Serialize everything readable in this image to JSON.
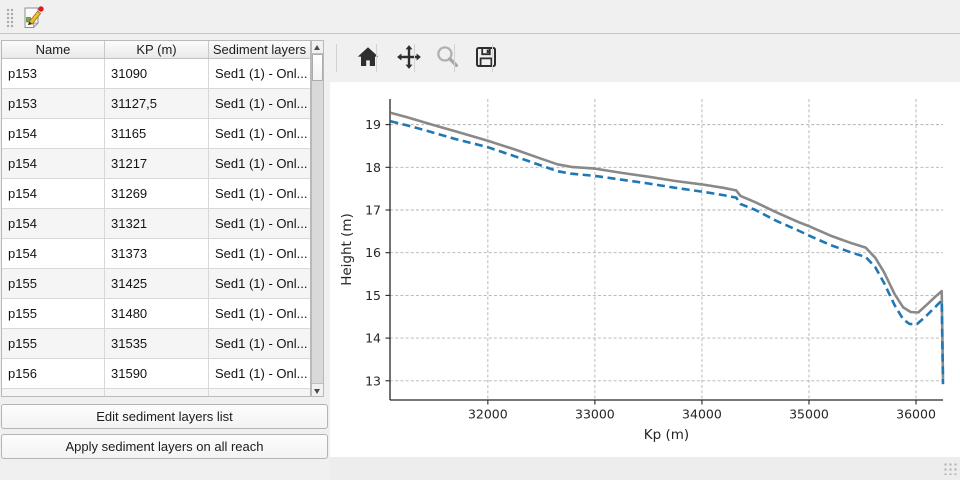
{
  "top_toolbar": {
    "icon": "edit-form-icon"
  },
  "left_panel": {
    "table": {
      "columns": [
        "Name",
        "KP (m)",
        "Sediment layers"
      ],
      "rows": [
        {
          "name": "p153",
          "kp": "31090",
          "sediment": "Sed1 (1) - Onl..."
        },
        {
          "name": "p153",
          "kp": "31127,5",
          "sediment": "Sed1 (1) - Onl..."
        },
        {
          "name": "p154",
          "kp": "31165",
          "sediment": "Sed1 (1) - Onl..."
        },
        {
          "name": "p154",
          "kp": "31217",
          "sediment": "Sed1 (1) - Onl..."
        },
        {
          "name": "p154",
          "kp": "31269",
          "sediment": "Sed1 (1) - Onl..."
        },
        {
          "name": "p154",
          "kp": "31321",
          "sediment": "Sed1 (1) - Onl..."
        },
        {
          "name": "p154",
          "kp": "31373",
          "sediment": "Sed1 (1) - Onl..."
        },
        {
          "name": "p155",
          "kp": "31425",
          "sediment": "Sed1 (1) - Onl..."
        },
        {
          "name": "p155",
          "kp": "31480",
          "sediment": "Sed1 (1) - Onl..."
        },
        {
          "name": "p155",
          "kp": "31535",
          "sediment": "Sed1 (1) - Onl..."
        },
        {
          "name": "p156",
          "kp": "31590",
          "sediment": "Sed1 (1) - Onl..."
        }
      ]
    },
    "buttons": {
      "edit": "Edit sediment layers list",
      "apply": "Apply sediment layers on all reach"
    }
  },
  "plot_toolbar": {
    "icons": [
      {
        "name": "home-icon",
        "enabled": true
      },
      {
        "name": "pan-icon",
        "enabled": true
      },
      {
        "name": "zoom-icon",
        "enabled": false
      },
      {
        "name": "save-icon",
        "enabled": true
      }
    ]
  },
  "chart_data": {
    "type": "line",
    "title": "",
    "xlabel": "Kp (m)",
    "ylabel": "Height (m)",
    "xlim": [
      31086,
      36252
    ],
    "ylim": [
      12.55,
      19.6
    ],
    "xticks": [
      32000,
      33000,
      34000,
      35000,
      36000
    ],
    "yticks": [
      13,
      14,
      15,
      16,
      17,
      18,
      19
    ],
    "grid": true,
    "legend": null,
    "series": [
      {
        "name": "bed-profile-solid",
        "color": "#898989",
        "style": "solid",
        "points": [
          [
            31090,
            19.28
          ],
          [
            31250,
            19.17
          ],
          [
            31450,
            19.02
          ],
          [
            31700,
            18.84
          ],
          [
            32000,
            18.62
          ],
          [
            32250,
            18.42
          ],
          [
            32500,
            18.2
          ],
          [
            32650,
            18.07
          ],
          [
            32780,
            18.01
          ],
          [
            33000,
            17.97
          ],
          [
            33250,
            17.87
          ],
          [
            33500,
            17.78
          ],
          [
            33750,
            17.68
          ],
          [
            34000,
            17.6
          ],
          [
            34200,
            17.52
          ],
          [
            34320,
            17.46
          ],
          [
            34360,
            17.33
          ],
          [
            34500,
            17.18
          ],
          [
            34700,
            16.94
          ],
          [
            34900,
            16.72
          ],
          [
            35000,
            16.62
          ],
          [
            35200,
            16.4
          ],
          [
            35400,
            16.22
          ],
          [
            35530,
            16.12
          ],
          [
            35620,
            15.88
          ],
          [
            35700,
            15.55
          ],
          [
            35800,
            15.03
          ],
          [
            35880,
            14.72
          ],
          [
            35950,
            14.61
          ],
          [
            36020,
            14.6
          ],
          [
            36100,
            14.78
          ],
          [
            36180,
            14.97
          ],
          [
            36240,
            15.1
          ],
          [
            36252,
            13.05
          ]
        ]
      },
      {
        "name": "bed-profile-dashed",
        "color": "#1f77b4",
        "style": "dashed",
        "points": [
          [
            31090,
            19.08
          ],
          [
            31250,
            18.98
          ],
          [
            31450,
            18.84
          ],
          [
            31700,
            18.66
          ],
          [
            32000,
            18.47
          ],
          [
            32250,
            18.26
          ],
          [
            32500,
            18.04
          ],
          [
            32650,
            17.91
          ],
          [
            32780,
            17.85
          ],
          [
            33000,
            17.8
          ],
          [
            33250,
            17.71
          ],
          [
            33500,
            17.62
          ],
          [
            33750,
            17.52
          ],
          [
            34000,
            17.43
          ],
          [
            34200,
            17.35
          ],
          [
            34320,
            17.29
          ],
          [
            34360,
            17.14
          ],
          [
            34500,
            17.0
          ],
          [
            34700,
            16.74
          ],
          [
            34900,
            16.52
          ],
          [
            35000,
            16.4
          ],
          [
            35200,
            16.18
          ],
          [
            35400,
            16.0
          ],
          [
            35530,
            15.9
          ],
          [
            35620,
            15.66
          ],
          [
            35700,
            15.3
          ],
          [
            35800,
            14.77
          ],
          [
            35880,
            14.44
          ],
          [
            35940,
            14.33
          ],
          [
            36010,
            14.33
          ],
          [
            36100,
            14.53
          ],
          [
            36180,
            14.73
          ],
          [
            36240,
            14.88
          ],
          [
            36252,
            12.92
          ]
        ]
      }
    ],
    "colors": {
      "grid": "#b2b2b2",
      "axis": "#262626"
    }
  }
}
